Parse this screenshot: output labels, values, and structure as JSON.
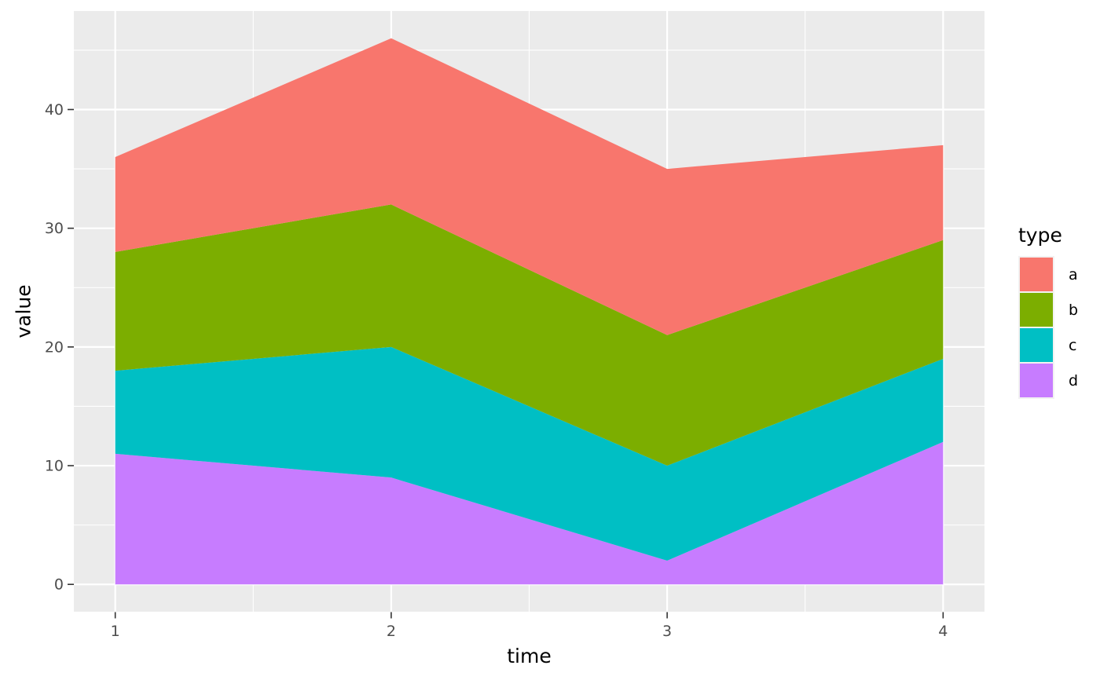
{
  "chart_data": {
    "type": "area",
    "stacked": true,
    "title": "",
    "xlabel": "time",
    "ylabel": "value",
    "legend_title": "type",
    "legend_position": "right",
    "grid": true,
    "x": [
      1,
      2,
      3,
      4
    ],
    "series": [
      {
        "name": "a",
        "color": "#F8766D",
        "values": [
          8,
          14,
          14,
          8
        ]
      },
      {
        "name": "b",
        "color": "#7CAE00",
        "values": [
          10,
          12,
          11,
          10
        ]
      },
      {
        "name": "c",
        "color": "#00BFC4",
        "values": [
          7,
          11,
          8,
          7
        ]
      },
      {
        "name": "d",
        "color": "#C77CFF",
        "values": [
          11,
          9,
          2,
          12
        ]
      }
    ],
    "stack_order_bottom_to_top": [
      "d",
      "c",
      "b",
      "a"
    ],
    "cumulative_tops": {
      "d": [
        11,
        9,
        2,
        12
      ],
      "c": [
        18,
        20,
        10,
        19
      ],
      "b": [
        28,
        32,
        21,
        29
      ],
      "a": [
        36,
        46,
        35,
        37
      ]
    },
    "x_domain": [
      1,
      4
    ],
    "y_domain": [
      0,
      46
    ],
    "x_ticks": [
      1,
      2,
      3,
      4
    ],
    "y_ticks": [
      0,
      10,
      20,
      30,
      40
    ],
    "x_minor_ticks": [
      1.5,
      2.5,
      3.5
    ],
    "y_minor_ticks": [
      5,
      15,
      25,
      35,
      45
    ]
  },
  "styles": {
    "panel_bg": "#EBEBEB",
    "grid_color": "#FFFFFF",
    "tick_text_color": "#4D4D4D",
    "tick_mark_color": "#333333",
    "axis_title_color": "#000000",
    "legend_key_bg": "#F2F2F2",
    "figure_bg": "#FFFFFF"
  }
}
